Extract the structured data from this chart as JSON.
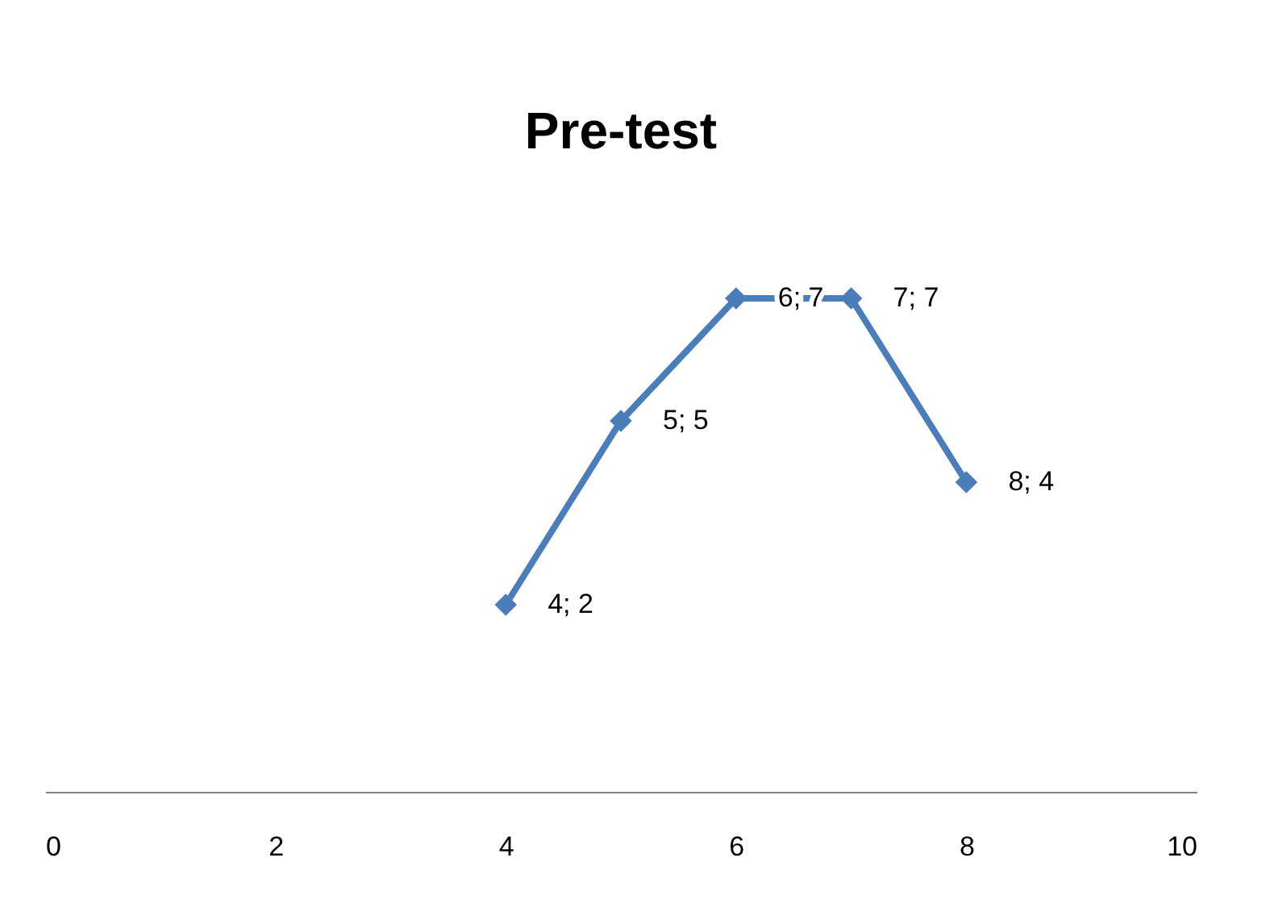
{
  "chart_data": {
    "type": "line",
    "title": "Pre-test",
    "x": [
      4,
      5,
      6,
      7,
      8
    ],
    "series": [
      {
        "color": "#4a7ebb",
        "values": [
          2,
          5,
          7,
          7,
          4
        ],
        "value_labels": [
          "4; 2",
          "5; 5",
          "6; 7",
          "7; 7",
          "8; 4"
        ]
      }
    ],
    "xlim": [
      0,
      10
    ],
    "xticks": [
      0,
      2,
      4,
      6,
      8,
      10
    ],
    "tick_labels": "x",
    "grid": false,
    "legend": false,
    "marker": "diamond",
    "line_style": "solid"
  }
}
